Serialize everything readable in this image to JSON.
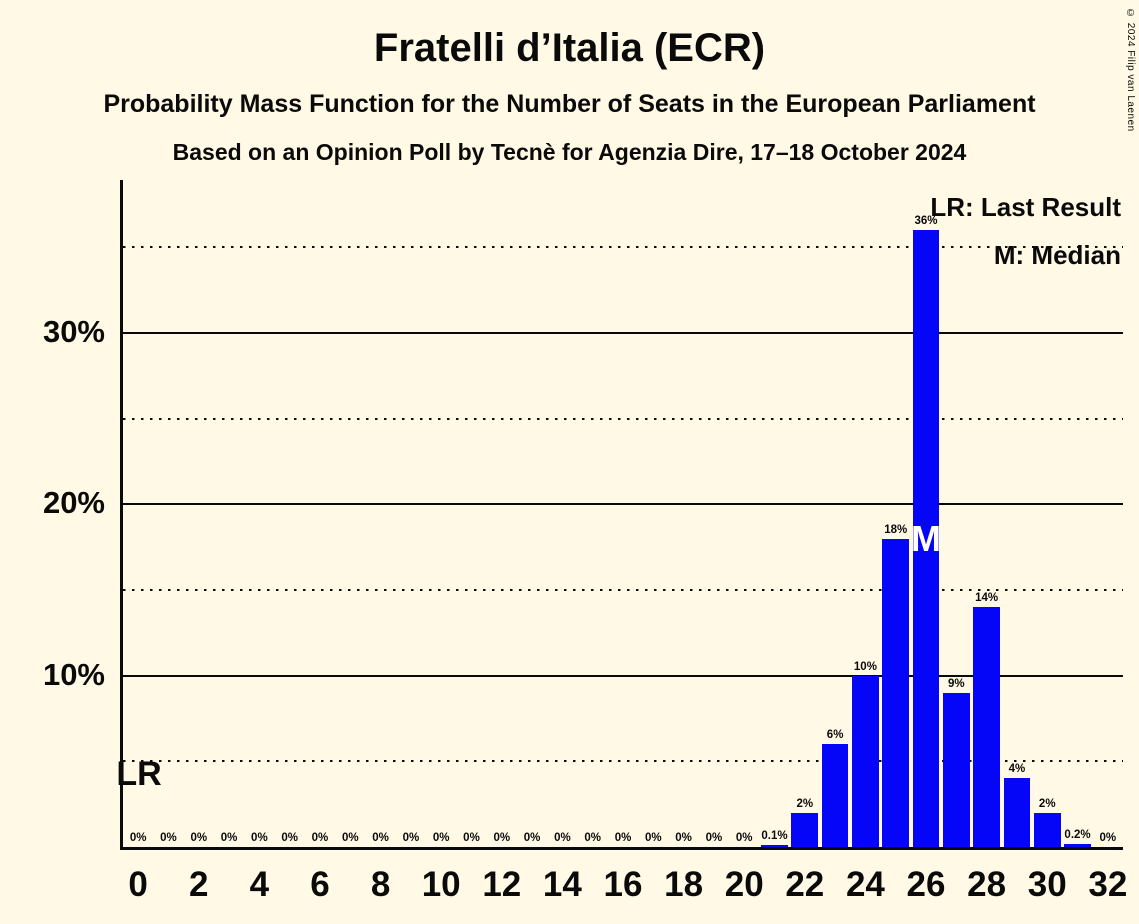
{
  "title": "Fratelli d’Italia (ECR)",
  "subtitles": {
    "line1": "Probability Mass Function for the Number of Seats in the European Parliament",
    "line2": "Based on an Opinion Poll by Tecnè for Agenzia Dire, 17–18 October 2024"
  },
  "copyright": "© 2024 Filip van Laenen",
  "legend": {
    "lr": "LR: Last Result",
    "median": "M: Median"
  },
  "markers": {
    "lr_label": "LR",
    "median_label": "M",
    "median_seat": 26
  },
  "colors": {
    "background": "#FFF9E5",
    "bar": "#0505F7",
    "text": "#0A0A0A"
  },
  "chart_data": {
    "type": "bar",
    "title": "Fratelli d’Italia (ECR)",
    "x": [
      0,
      1,
      2,
      3,
      4,
      5,
      6,
      7,
      8,
      9,
      10,
      11,
      12,
      13,
      14,
      15,
      16,
      17,
      18,
      19,
      20,
      21,
      22,
      23,
      24,
      25,
      26,
      27,
      28,
      29,
      30,
      31,
      32
    ],
    "values": [
      0,
      0,
      0,
      0,
      0,
      0,
      0,
      0,
      0,
      0,
      0,
      0,
      0,
      0,
      0,
      0,
      0,
      0,
      0,
      0,
      0,
      0.1,
      2,
      6,
      10,
      18,
      36,
      9,
      14,
      4,
      2,
      0.2,
      0
    ],
    "bar_labels": [
      "0%",
      "0%",
      "0%",
      "0%",
      "0%",
      "0%",
      "0%",
      "0%",
      "0%",
      "0%",
      "0%",
      "0%",
      "0%",
      "0%",
      "0%",
      "0%",
      "0%",
      "0%",
      "0%",
      "0%",
      "0%",
      "0.1%",
      "2%",
      "6%",
      "10%",
      "18%",
      "36%",
      "9%",
      "14%",
      "4%",
      "2%",
      "0.2%",
      "0%"
    ],
    "x_tick_labels": [
      "0",
      "2",
      "4",
      "6",
      "8",
      "10",
      "12",
      "14",
      "16",
      "18",
      "20",
      "22",
      "24",
      "26",
      "28",
      "30",
      "32"
    ],
    "y_ticks": [
      {
        "value": 10,
        "label": "10%"
      },
      {
        "value": 20,
        "label": "20%"
      },
      {
        "value": 30,
        "label": "30%"
      }
    ],
    "solid_gridlines_pct": [
      10,
      20,
      30
    ],
    "dotted_gridlines_pct": [
      5,
      15,
      25,
      35
    ],
    "ylim": [
      0,
      38.9
    ],
    "grid": true,
    "legend_position": "top-right",
    "median_seat": 26
  }
}
